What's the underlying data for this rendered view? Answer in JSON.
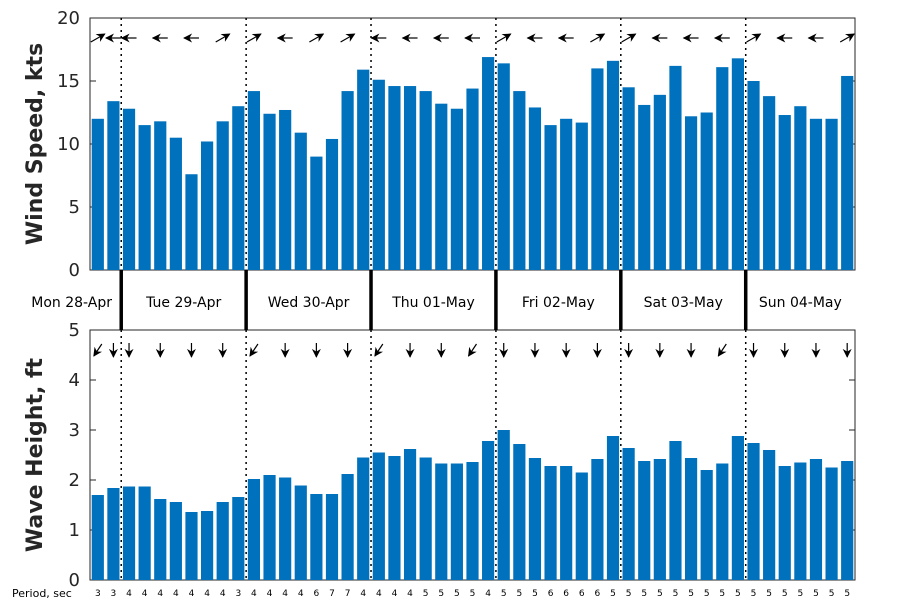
{
  "chart_data": [
    {
      "type": "bar",
      "ylabel": "Wind Speed, kts",
      "ylim": [
        0,
        20
      ],
      "yticks": [
        0,
        5,
        10,
        15,
        20
      ],
      "color": "#0072BD",
      "values": [
        12.0,
        13.4,
        12.8,
        11.5,
        11.8,
        10.5,
        7.6,
        10.2,
        11.8,
        13.0,
        14.2,
        12.4,
        12.7,
        10.9,
        9.0,
        10.4,
        14.2,
        15.9,
        15.1,
        14.6,
        14.6,
        14.2,
        13.2,
        12.8,
        14.4,
        16.9,
        16.4,
        14.2,
        12.9,
        11.5,
        12.0,
        11.7,
        16.0,
        16.6,
        14.5,
        13.1,
        13.9,
        16.2,
        12.2,
        12.5,
        16.1,
        16.8,
        15.0,
        13.8,
        12.3,
        13.0,
        12.0,
        12.0,
        15.4
      ],
      "direction_arrows": [
        "ne",
        "w",
        "w",
        "w",
        "w",
        "ne",
        "w",
        "w",
        "ne",
        "w",
        "ne",
        "w",
        "w",
        "w",
        "ne",
        "w",
        "ne",
        "w",
        "w",
        "w",
        "w",
        "w",
        "w",
        "ne",
        "w",
        "ne",
        "ne",
        "w",
        "w",
        "w",
        "w",
        "w",
        "ne",
        "w",
        "ne",
        "w",
        "w",
        "w",
        "w",
        "ne",
        "w",
        "ne",
        "ne",
        "w",
        "w",
        "w",
        "w",
        "w",
        "ne"
      ]
    },
    {
      "type": "bar",
      "ylabel": "Wave Height, ft",
      "ylim": [
        0,
        5
      ],
      "yticks": [
        0,
        1,
        2,
        3,
        4,
        5
      ],
      "color": "#0072BD",
      "values": [
        1.7,
        1.84,
        1.87,
        1.87,
        1.62,
        1.56,
        1.36,
        1.38,
        1.56,
        1.66,
        2.02,
        2.1,
        2.05,
        1.89,
        1.72,
        1.72,
        2.12,
        2.45,
        2.55,
        2.48,
        2.62,
        2.45,
        2.33,
        2.33,
        2.36,
        2.78,
        3.0,
        2.72,
        2.44,
        2.28,
        2.28,
        2.15,
        2.42,
        2.88,
        2.64,
        2.38,
        2.42,
        2.78,
        2.44,
        2.2,
        2.33,
        2.88,
        2.74,
        2.6,
        2.28,
        2.35,
        2.42,
        2.25,
        2.38
      ],
      "direction_arrows": [
        "sw",
        "s",
        "s",
        "s",
        "s",
        "s",
        "s",
        "s",
        "s",
        "sw",
        "sw",
        "s",
        "s",
        "s",
        "s",
        "s",
        "s",
        "sw",
        "sw",
        "s",
        "s",
        "s",
        "s",
        "s",
        "sw",
        "sw",
        "s",
        "s",
        "s",
        "s",
        "s",
        "s",
        "s",
        "s",
        "s",
        "s",
        "s",
        "s",
        "s",
        "s",
        "sw",
        "sw",
        "s",
        "s",
        "s",
        "s",
        "s",
        "s",
        "s"
      ]
    }
  ],
  "days": [
    "Mon 28-Apr",
    "Tue 29-Apr",
    "Wed 30-Apr",
    "Thu 01-May",
    "Fri 02-May",
    "Sat 03-May",
    "Sun 04-May"
  ],
  "day_boundaries": [
    1.5,
    9.5,
    17.5,
    25.5,
    33.5,
    41.5
  ],
  "period_title": "Period, sec",
  "periods": [
    3,
    3,
    4,
    4,
    4,
    4,
    4,
    4,
    4,
    3,
    4,
    4,
    4,
    4,
    6,
    7,
    7,
    4,
    4,
    4,
    4,
    5,
    5,
    5,
    5,
    4,
    5,
    5,
    5,
    6,
    6,
    6,
    6,
    5,
    5,
    5,
    5,
    5,
    5,
    5,
    5,
    5,
    5,
    5,
    5,
    5,
    5,
    5,
    5
  ]
}
